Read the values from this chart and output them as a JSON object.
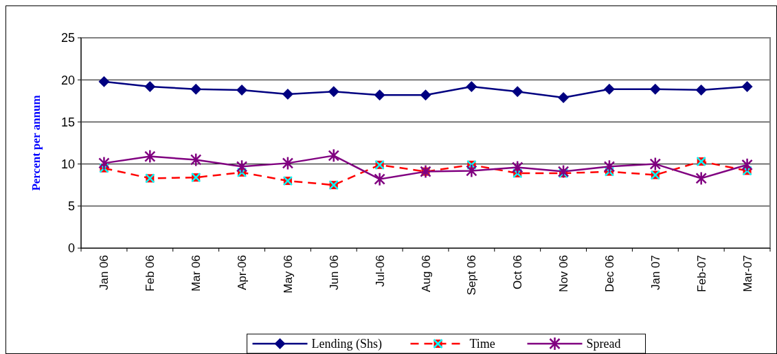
{
  "chart_data": {
    "type": "line",
    "ylabel": "Percent per annum",
    "categories": [
      "Jan 06",
      "Feb 06",
      "Mar 06",
      "Apr-06",
      "May 06",
      "Jun 06",
      "Jul-06",
      "Aug 06",
      "Sept 06",
      "Oct 06",
      "Nov 06",
      "Dec 06",
      "Jan 07",
      "Feb-07",
      "Mar-07"
    ],
    "series": [
      {
        "name": "Lending (Shs)",
        "color": "#000080",
        "marker": "diamond",
        "line_style": "solid",
        "values": [
          19.8,
          19.2,
          18.9,
          18.8,
          18.3,
          18.6,
          18.2,
          18.2,
          19.2,
          18.6,
          17.9,
          18.9,
          18.9,
          18.8,
          19.2
        ]
      },
      {
        "name": "Time",
        "color": "#ff0000",
        "marker": "square",
        "line_style": "dashed",
        "values": [
          9.5,
          8.3,
          8.4,
          9.0,
          8.0,
          7.5,
          9.9,
          9.1,
          9.9,
          8.9,
          8.9,
          9.1,
          8.7,
          10.3,
          9.2
        ]
      },
      {
        "name": "Spread",
        "color": "#800080",
        "marker": "cross",
        "line_style": "solid",
        "values": [
          10.1,
          10.9,
          10.5,
          9.7,
          10.1,
          11.0,
          8.2,
          9.1,
          9.2,
          9.6,
          9.1,
          9.7,
          10.0,
          8.3,
          9.9
        ]
      }
    ],
    "ylim": [
      0,
      25
    ],
    "yticks": [
      0,
      5,
      10,
      15,
      20,
      25
    ],
    "grid": "y",
    "legend": "bottom"
  }
}
